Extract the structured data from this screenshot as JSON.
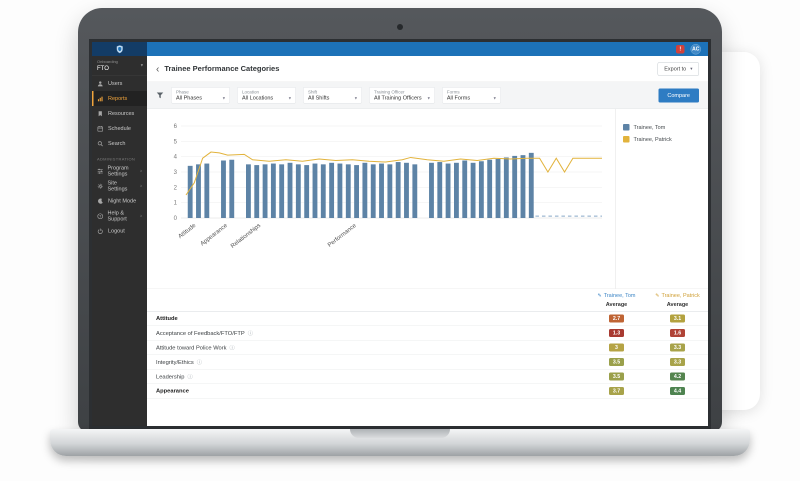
{
  "topbar": {
    "avatar": "AC",
    "bar_color": "#1d72b8",
    "logo_bg": "#133c66"
  },
  "sidebar": {
    "program": {
      "eyebrow": "Onboarding",
      "name": "FTO"
    },
    "items": [
      {
        "label": "Users",
        "icon": "users-icon"
      },
      {
        "label": "Reports",
        "icon": "reports-icon",
        "active": true
      },
      {
        "label": "Resources",
        "icon": "resources-icon"
      },
      {
        "label": "Schedule",
        "icon": "schedule-icon"
      },
      {
        "label": "Search",
        "icon": "search-icon"
      }
    ],
    "section_label": "ADMINISTRATION",
    "admin_items": [
      {
        "label": "Program Settings",
        "icon": "program-settings-icon",
        "chevron": true
      },
      {
        "label": "Site Settings",
        "icon": "site-settings-icon",
        "chevron": true
      },
      {
        "label": "Night Mode",
        "icon": "night-mode-icon"
      },
      {
        "label": "Help & Support",
        "icon": "help-icon",
        "chevron": true
      },
      {
        "label": "Logout",
        "icon": "logout-icon"
      }
    ]
  },
  "header": {
    "back": "‹",
    "title": "Trainee Performance Categories",
    "export_label": "Export to"
  },
  "filters": {
    "items": [
      {
        "caption": "Phase",
        "value": "All Phases"
      },
      {
        "caption": "Location",
        "value": "All Locations"
      },
      {
        "caption": "Shift",
        "value": "All Shifts"
      },
      {
        "caption": "Training Officer",
        "value": "All Training Officers"
      },
      {
        "caption": "Forms",
        "value": "All Forms"
      }
    ],
    "compare_label": "Compare"
  },
  "chart_data": {
    "type": "bar",
    "title": "Trainee Performance Categories",
    "ylim": [
      0,
      6
    ],
    "yticks": [
      0,
      1,
      2,
      3,
      4,
      5,
      6
    ],
    "slots": 50,
    "series": [
      {
        "name": "Trainee, Tom",
        "type": "bar",
        "color": "#5d83a6"
      },
      {
        "name": "Trainee, Patrick",
        "type": "line",
        "color": "#e2b33c"
      }
    ],
    "bars": [
      3.4,
      3.5,
      3.55,
      null,
      3.75,
      3.8,
      null,
      3.5,
      3.45,
      3.5,
      3.55,
      3.5,
      3.6,
      3.5,
      3.45,
      3.55,
      3.5,
      3.6,
      3.55,
      3.5,
      3.45,
      3.6,
      3.5,
      3.55,
      3.5,
      3.65,
      3.6,
      3.5,
      null,
      3.6,
      3.65,
      3.55,
      3.6,
      3.75,
      3.6,
      3.7,
      3.8,
      3.85,
      3.95,
      4.05,
      4.1,
      4.25,
      null,
      null,
      null,
      null,
      null,
      null,
      null,
      null
    ],
    "line": [
      [
        0,
        1.5
      ],
      [
        1,
        2.3
      ],
      [
        2,
        3.9
      ],
      [
        3,
        4.3
      ],
      [
        4,
        4.25
      ],
      [
        5,
        4.1
      ],
      [
        7,
        4.15
      ],
      [
        8,
        3.8
      ],
      [
        10,
        3.7
      ],
      [
        12,
        3.8
      ],
      [
        14,
        3.7
      ],
      [
        16,
        3.85
      ],
      [
        18,
        3.75
      ],
      [
        20,
        3.8
      ],
      [
        22,
        3.7
      ],
      [
        24,
        3.65
      ],
      [
        26,
        3.8
      ],
      [
        27,
        3.95
      ],
      [
        29,
        3.8
      ],
      [
        31,
        3.7
      ],
      [
        33,
        3.85
      ],
      [
        35,
        3.75
      ],
      [
        37,
        3.9
      ],
      [
        39,
        3.85
      ],
      [
        41,
        3.9
      ],
      [
        42.5,
        3.9
      ],
      [
        43.5,
        3.0
      ],
      [
        44.5,
        3.9
      ],
      [
        45.5,
        3.0
      ],
      [
        46.5,
        3.9
      ],
      [
        50,
        3.9
      ]
    ],
    "dash_from": 42,
    "dash_value": 0.12,
    "dash_color": "#86a8c6",
    "grid": true,
    "legend_position": "right",
    "categories": [
      {
        "label": "Attitude",
        "slot": 1.2
      },
      {
        "label": "Appearance",
        "slot": 5
      },
      {
        "label": "Relationships",
        "slot": 9
      },
      {
        "label": "Performance",
        "slot": 20.5
      }
    ]
  },
  "table": {
    "columns": [
      {
        "name": "Trainee, Tom",
        "color": "#3d86c6",
        "sub": "Average"
      },
      {
        "name": "Trainee, Patrick",
        "color": "#cf9f35",
        "sub": "Average"
      }
    ],
    "rows": [
      {
        "label": "Attitude",
        "section": true,
        "tom": {
          "value": "2.7",
          "color": "#bf6434"
        },
        "patrick": {
          "value": "3.1",
          "color": "#b3a23f"
        }
      },
      {
        "label": "Acceptance of Feedback/FTO/FTP",
        "info": true,
        "tom": {
          "value": "1.3",
          "color": "#a83a31"
        },
        "patrick": {
          "value": "1.6",
          "color": "#b04336"
        }
      },
      {
        "label": "Attitude toward Police Work",
        "info": true,
        "tom": {
          "value": "3",
          "color": "#b5a344"
        },
        "patrick": {
          "value": "3.3",
          "color": "#a8a34a"
        }
      },
      {
        "label": "Integrity/Ethics",
        "info": true,
        "tom": {
          "value": "3.5",
          "color": "#9aa04b"
        },
        "patrick": {
          "value": "3.3",
          "color": "#a8a34a"
        }
      },
      {
        "label": "Leadership",
        "info": true,
        "tom": {
          "value": "3.5",
          "color": "#9aa04b"
        },
        "patrick": {
          "value": "4.2",
          "color": "#55854f"
        }
      },
      {
        "label": "Appearance",
        "section": true,
        "tom": {
          "value": "3.7",
          "color": "#a8a34a"
        },
        "patrick": {
          "value": "4.4",
          "color": "#4e8350"
        }
      }
    ]
  }
}
